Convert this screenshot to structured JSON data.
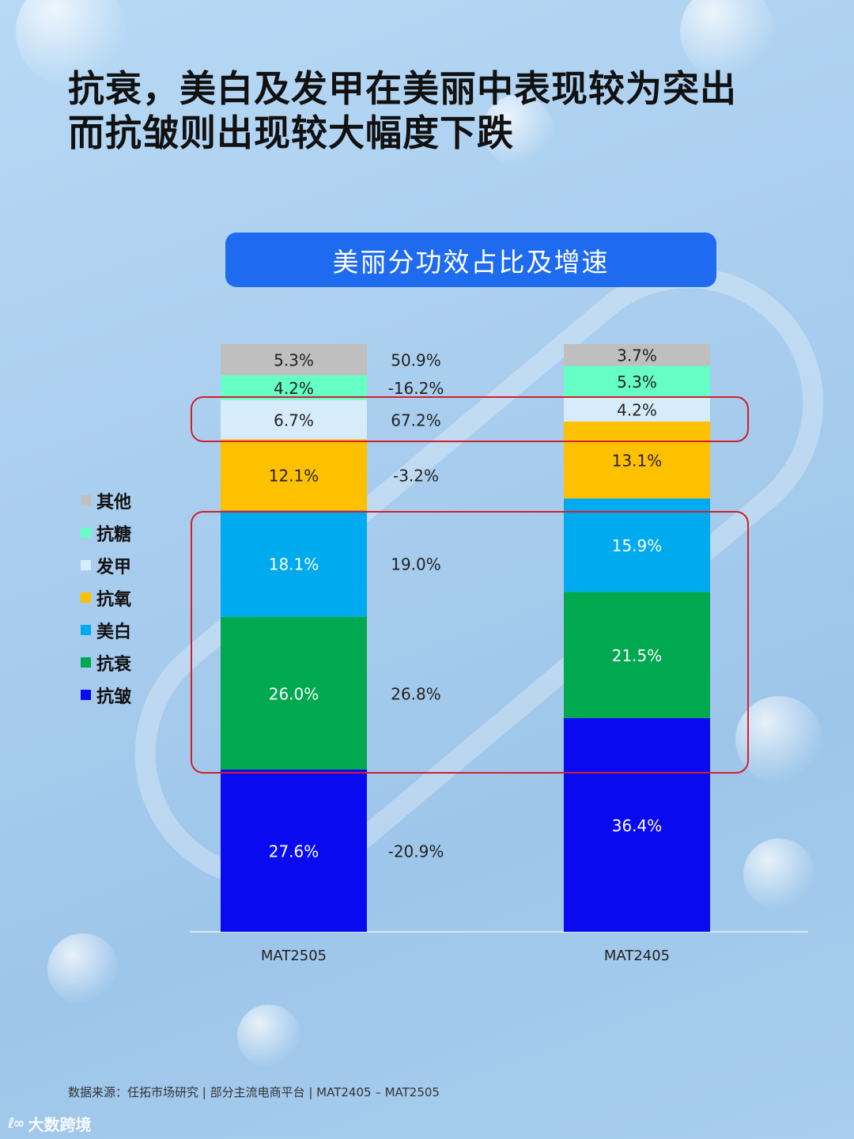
{
  "title_lines": [
    "抗衰，美白及发甲在美丽中表现较为突出",
    "而抗皱则出现较大幅度下跌"
  ],
  "banner_title": "美丽分功效占比及增速",
  "source": "数据来源：任拓市场研究 | 部分主流电商平台 | MAT2405 – MAT2505",
  "watermark": "大数跨境",
  "chart_data": {
    "type": "bar",
    "stacked": true,
    "normalized_percent": true,
    "categories": [
      "MAT2505",
      "MAT2405"
    ],
    "series": [
      {
        "name": "抗皱",
        "color": "#0a0af0",
        "values": [
          27.6,
          36.4
        ],
        "labels": [
          "27.6%",
          "36.4%"
        ],
        "growth": "-20.9%"
      },
      {
        "name": "抗衰",
        "color": "#00a84f",
        "values": [
          26.0,
          21.5
        ],
        "labels": [
          "26.0%",
          "21.5%"
        ],
        "growth": "26.8%"
      },
      {
        "name": "美白",
        "color": "#00aaee",
        "values": [
          18.1,
          15.9
        ],
        "labels": [
          "18.1%",
          "15.9%"
        ],
        "growth": "19.0%"
      },
      {
        "name": "抗氧",
        "color": "#ffc000",
        "values": [
          12.1,
          13.1
        ],
        "labels": [
          "12.1%",
          "13.1%"
        ],
        "growth": "-3.2%"
      },
      {
        "name": "发甲",
        "color": "#d6ecfa",
        "values": [
          6.7,
          4.2
        ],
        "labels": [
          "6.7%",
          "4.2%"
        ],
        "growth": "67.2%"
      },
      {
        "name": "抗糖",
        "color": "#66ffc6",
        "values": [
          4.2,
          5.3
        ],
        "labels": [
          "4.2%",
          "5.3%"
        ],
        "growth": "-16.2%"
      },
      {
        "name": "其他",
        "color": "#bfbfbf",
        "values": [
          5.3,
          3.7
        ],
        "labels": [
          "5.3%",
          "3.7%"
        ],
        "growth": "50.9%"
      }
    ],
    "legend_order": [
      "其他",
      "抗糖",
      "发甲",
      "抗氧",
      "美白",
      "抗衰",
      "抗皱"
    ],
    "legend_position": "left",
    "highlight_color": "#d0202c",
    "highlighted_series": [
      [
        "发甲"
      ],
      [
        "美白",
        "抗衰"
      ]
    ]
  }
}
